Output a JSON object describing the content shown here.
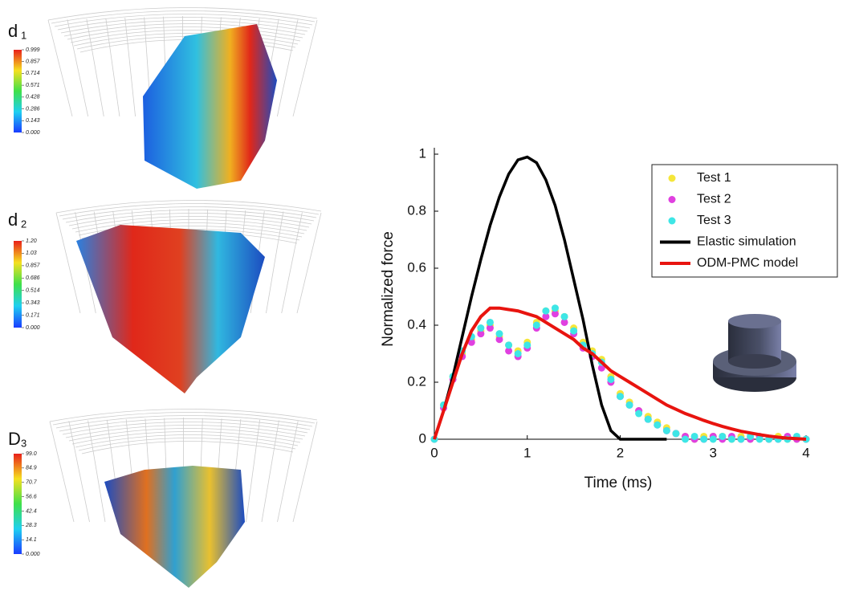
{
  "panels": [
    {
      "label": "d",
      "subscript": "1",
      "colorbar_ticks": [
        0.999,
        0.857,
        0.714,
        0.571,
        0.428,
        0.286,
        0.143,
        {
          "value": 0,
          "label": "0.000"
        }
      ]
    },
    {
      "label": "d",
      "subscript": "2",
      "colorbar_ticks": [
        {
          "value": 1.2,
          "label": "1.20"
        },
        1.03,
        0.857,
        0.686,
        0.514,
        0.343,
        0.171,
        {
          "value": 0,
          "label": "0.000"
        }
      ]
    },
    {
      "label": "D",
      "subscript": "3",
      "colorbar_ticks": [
        {
          "value": 99,
          "label": "99.0"
        },
        84.9,
        70.7,
        56.6,
        42.4,
        28.3,
        14.1,
        {
          "value": 0,
          "label": "0.000"
        }
      ]
    }
  ],
  "chart_data": {
    "type": "line",
    "xlabel": "Time (ms)",
    "ylabel": "Normalized force",
    "xlim": [
      0,
      4
    ],
    "ylim": [
      0,
      1
    ],
    "xticks": [
      0,
      1,
      2,
      3,
      4
    ],
    "yticks": [
      0,
      0.2,
      0.4,
      0.6,
      0.8,
      1
    ],
    "legend": "upper right",
    "series": [
      {
        "name": "Test 1",
        "color": "#f5e63a",
        "style": "markers",
        "x": [
          0,
          0.1,
          0.2,
          0.3,
          0.4,
          0.5,
          0.6,
          0.7,
          0.8,
          0.9,
          1,
          1.1,
          1.2,
          1.3,
          1.4,
          1.5,
          1.6,
          1.7,
          1.8,
          1.9,
          2,
          2.1,
          2.2,
          2.3,
          2.4,
          2.5,
          2.6,
          2.7,
          2.8,
          2.9,
          3,
          3.1,
          3.2,
          3.3,
          3.4,
          3.5,
          3.6,
          3.7,
          3.8,
          3.9,
          4
        ],
        "values": [
          0,
          0.12,
          0.22,
          0.3,
          0.35,
          0.38,
          0.4,
          0.36,
          0.33,
          0.31,
          0.34,
          0.41,
          0.45,
          0.45,
          0.43,
          0.39,
          0.34,
          0.31,
          0.28,
          0.22,
          0.16,
          0.13,
          0.1,
          0.08,
          0.06,
          0.04,
          0.02,
          0.01,
          0,
          0.01,
          0.01,
          0.01,
          0,
          0.01,
          0,
          0.01,
          0,
          0.01,
          0,
          0,
          0
        ]
      },
      {
        "name": "Test 2",
        "color": "#e040e0",
        "style": "markers",
        "x": [
          0,
          0.1,
          0.2,
          0.3,
          0.4,
          0.5,
          0.6,
          0.7,
          0.8,
          0.9,
          1,
          1.1,
          1.2,
          1.3,
          1.4,
          1.5,
          1.6,
          1.7,
          1.8,
          1.9,
          2,
          2.1,
          2.2,
          2.3,
          2.4,
          2.5,
          2.6,
          2.7,
          2.8,
          2.9,
          3,
          3.1,
          3.2,
          3.3,
          3.4,
          3.5,
          3.6,
          3.7,
          3.8,
          3.9,
          4
        ],
        "values": [
          0,
          0.11,
          0.21,
          0.29,
          0.34,
          0.37,
          0.39,
          0.35,
          0.31,
          0.29,
          0.32,
          0.39,
          0.43,
          0.44,
          0.41,
          0.37,
          0.32,
          0.29,
          0.25,
          0.2,
          0.15,
          0.12,
          0.1,
          0.07,
          0.05,
          0.03,
          0.02,
          0.01,
          0,
          0,
          0.01,
          0,
          0.01,
          0,
          0,
          0.01,
          0,
          0,
          0.01,
          0,
          0
        ]
      },
      {
        "name": "Test 3",
        "color": "#3ee6e6",
        "style": "markers",
        "x": [
          0,
          0.1,
          0.2,
          0.3,
          0.4,
          0.5,
          0.6,
          0.7,
          0.8,
          0.9,
          1,
          1.1,
          1.2,
          1.3,
          1.4,
          1.5,
          1.6,
          1.7,
          1.8,
          1.9,
          2,
          2.1,
          2.2,
          2.3,
          2.4,
          2.5,
          2.6,
          2.7,
          2.8,
          2.9,
          3,
          3.1,
          3.2,
          3.3,
          3.4,
          3.5,
          3.6,
          3.7,
          3.8,
          3.9,
          4
        ],
        "values": [
          0,
          0.12,
          0.22,
          0.31,
          0.36,
          0.39,
          0.41,
          0.37,
          0.33,
          0.3,
          0.33,
          0.4,
          0.45,
          0.46,
          0.43,
          0.38,
          0.33,
          0.3,
          0.27,
          0.21,
          0.15,
          0.12,
          0.09,
          0.07,
          0.05,
          0.03,
          0.02,
          0,
          0.01,
          0,
          0,
          0.01,
          0,
          0,
          0.01,
          0,
          0,
          0,
          0,
          0.01,
          0
        ]
      },
      {
        "name": "Elastic simulation",
        "color": "#000000",
        "style": "line",
        "x": [
          0,
          0.1,
          0.2,
          0.3,
          0.4,
          0.5,
          0.6,
          0.7,
          0.8,
          0.9,
          1,
          1.1,
          1.2,
          1.3,
          1.4,
          1.5,
          1.6,
          1.7,
          1.8,
          1.9,
          2,
          2.1,
          2.2,
          2.3,
          2.4,
          2.5
        ],
        "values": [
          0,
          0.1,
          0.22,
          0.36,
          0.5,
          0.63,
          0.75,
          0.85,
          0.93,
          0.98,
          0.99,
          0.97,
          0.91,
          0.82,
          0.7,
          0.56,
          0.42,
          0.26,
          0.12,
          0.03,
          0,
          0,
          0,
          0,
          0,
          0
        ]
      },
      {
        "name": "ODM-PMC model",
        "color": "#e8140f",
        "style": "line",
        "x": [
          0,
          0.1,
          0.2,
          0.3,
          0.4,
          0.5,
          0.6,
          0.7,
          0.8,
          0.9,
          1,
          1.1,
          1.2,
          1.3,
          1.4,
          1.5,
          1.6,
          1.7,
          1.8,
          1.9,
          2,
          2.1,
          2.2,
          2.3,
          2.4,
          2.5,
          2.6,
          2.7,
          2.8,
          2.9,
          3,
          3.1,
          3.2,
          3.3,
          3.4,
          3.5,
          3.6,
          3.7,
          3.8,
          3.9,
          4
        ],
        "values": [
          0,
          0.1,
          0.2,
          0.3,
          0.38,
          0.43,
          0.46,
          0.46,
          0.455,
          0.45,
          0.44,
          0.43,
          0.41,
          0.39,
          0.37,
          0.35,
          0.32,
          0.3,
          0.27,
          0.24,
          0.22,
          0.2,
          0.18,
          0.16,
          0.14,
          0.12,
          0.105,
          0.09,
          0.078,
          0.066,
          0.055,
          0.045,
          0.036,
          0.028,
          0.022,
          0.016,
          0.011,
          0.007,
          0.004,
          0.002,
          0
        ]
      }
    ]
  }
}
